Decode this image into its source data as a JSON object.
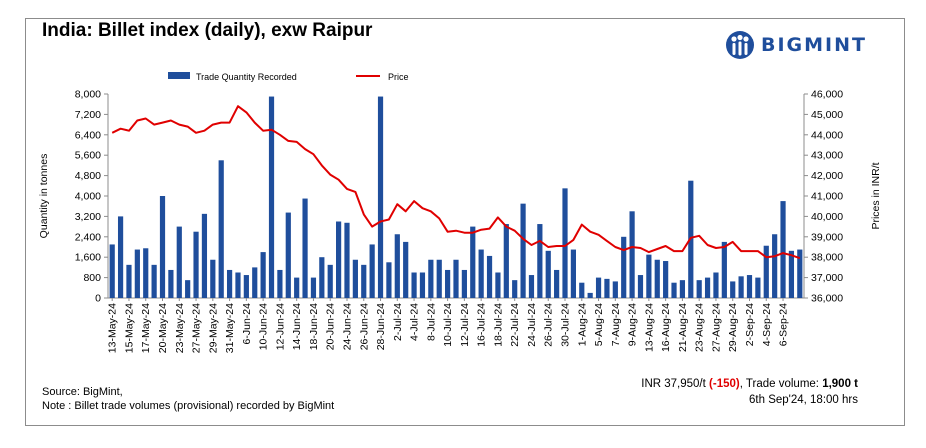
{
  "header": {
    "title": "India: Billet index (daily), exw Raipur",
    "brand": "BIGMINT"
  },
  "colors": {
    "bar": "#1f4e9c",
    "line": "#e00000",
    "brand": "#1f4e9c"
  },
  "footer": {
    "source": "Source: BigMint,",
    "note": "Note : Billet trade volumes (provisional) recorded by BigMint"
  },
  "summary": {
    "price_label": "INR 37,950/t",
    "change": "(-150)",
    "volume_label": "Trade volume:",
    "volume_value": "1,900 t",
    "timestamp": "6th Sep'24, 18:00 hrs"
  },
  "chart_data": {
    "type": "bar+line",
    "legend": {
      "bar": "Trade Quantity Recorded",
      "line": "Price",
      "position": "top"
    },
    "ylabel_left": "Quantity in tonnes",
    "ylabel_right": "Prices in INR/t",
    "ylim_left": [
      0,
      8000
    ],
    "ylim_right": [
      36000,
      46000
    ],
    "yticks_left": [
      "0",
      "800",
      "1,600",
      "2,400",
      "3,200",
      "4,000",
      "4,800",
      "5,600",
      "6,400",
      "7,200",
      "8,000"
    ],
    "yticks_right": [
      "36,000",
      "37,000",
      "38,000",
      "39,000",
      "40,000",
      "41,000",
      "42,000",
      "43,000",
      "44,000",
      "45,000",
      "46,000"
    ],
    "x_tick_labels": [
      "13-May-24",
      "15-May-24",
      "17-May-24",
      "20-May-24",
      "23-May-24",
      "27-May-24",
      "29-May-24",
      "31-May-24",
      "6-Jun-24",
      "10-Jun-24",
      "12-Jun-24",
      "14-Jun-24",
      "18-Jun-24",
      "20-Jun-24",
      "24-Jun-24",
      "26-Jun-24",
      "28-Jun-24",
      "2-Jul-24",
      "4-Jul-24",
      "8-Jul-24",
      "10-Jul-24",
      "12-Jul-24",
      "16-Jul-24",
      "18-Jul-24",
      "22-Jul-24",
      "24-Jul-24",
      "26-Jul-24",
      "30-Jul-24",
      "1-Aug-24",
      "5-Aug-24",
      "7-Aug-24",
      "9-Aug-24",
      "13-Aug-24",
      "16-Aug-24",
      "21-Aug-24",
      "23-Aug-24",
      "27-Aug-24",
      "29-Aug-24",
      "2-Sep-24",
      "4-Sep-24",
      "6-Sep-24"
    ],
    "quantity": [
      2100,
      3200,
      1300,
      1900,
      1950,
      1300,
      4000,
      1100,
      2800,
      700,
      2600,
      3300,
      1500,
      5400,
      1100,
      1000,
      900,
      1200,
      1800,
      7900,
      1100,
      3350,
      800,
      3900,
      800,
      1600,
      1300,
      3000,
      2950,
      1500,
      1300,
      2100,
      7900,
      1400,
      2500,
      2200,
      1000,
      1000,
      1500,
      1500,
      1100,
      1500,
      1100,
      2800,
      1900,
      1650,
      1000,
      2900,
      700,
      3700,
      900,
      2900,
      1850,
      1100,
      4300,
      1900,
      600,
      200,
      800,
      750,
      650,
      2400,
      3400,
      900,
      1700,
      1500,
      1450,
      600,
      700,
      4600,
      700,
      800,
      1000,
      2200,
      650,
      850,
      900,
      800,
      2050,
      2500,
      3800,
      1850,
      1900
    ],
    "price": [
      44100,
      44300,
      44200,
      44700,
      44800,
      44500,
      44600,
      44700,
      44500,
      44400,
      44100,
      44200,
      44500,
      44600,
      44600,
      45400,
      45100,
      44600,
      44200,
      44250,
      44000,
      43700,
      43650,
      43300,
      43050,
      42500,
      42050,
      41800,
      41350,
      41200,
      40100,
      39500,
      39750,
      39850,
      40600,
      40250,
      40750,
      40400,
      40250,
      39900,
      39250,
      39300,
      39200,
      39200,
      39350,
      39400,
      39950,
      39500,
      39300,
      38900,
      38600,
      38800,
      38500,
      38550,
      38550,
      38850,
      39600,
      39250,
      39100,
      38800,
      38500,
      38350,
      38500,
      38450,
      38250,
      38400,
      38550,
      38300,
      38300,
      38950,
      39050,
      38600,
      38450,
      38500,
      38750,
      38300,
      38300,
      38300,
      38000,
      38050,
      38200,
      38100,
      37950
    ]
  }
}
